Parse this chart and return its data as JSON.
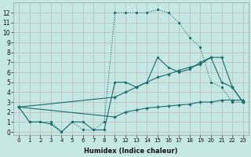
{
  "xlabel": "Humidex (Indice chaleur)",
  "xlim": [
    -0.5,
    23.5
  ],
  "ylim": [
    -0.3,
    13
  ],
  "yticks": [
    0,
    1,
    2,
    3,
    4,
    5,
    6,
    7,
    8,
    9,
    10,
    11,
    12
  ],
  "xtick_locs": [
    0,
    1,
    2,
    3,
    4,
    5,
    6,
    7,
    8,
    9,
    12,
    13,
    14,
    15,
    16,
    17,
    18,
    19,
    20,
    21,
    22,
    23
  ],
  "bg_color": "#c5e8e5",
  "grid_color": "#aacfcc",
  "grid_major_color": "#c0b8b8",
  "line_color": "#1a6b6b",
  "line1_x": [
    0,
    1,
    2,
    3,
    4,
    5,
    6,
    7,
    8,
    9,
    12,
    13,
    14,
    15,
    16,
    17,
    18,
    19,
    20,
    21,
    22,
    23
  ],
  "line1_y": [
    2.5,
    1,
    1,
    1,
    0,
    1,
    0.2,
    0.2,
    1,
    12,
    12,
    12,
    12,
    12.3,
    12,
    11,
    9.5,
    8.5,
    5,
    4.5,
    3,
    3
  ],
  "line2_x": [
    0,
    1,
    2,
    3,
    4,
    5,
    6,
    7,
    8,
    9,
    12,
    13,
    14,
    15,
    16,
    17,
    18,
    19,
    20,
    21,
    22,
    23
  ],
  "line2_y": [
    2.5,
    1,
    1,
    0.8,
    0,
    1,
    1,
    0.2,
    0.2,
    5,
    5,
    4.5,
    5,
    7.5,
    6.5,
    6,
    6.3,
    7,
    7.5,
    5,
    4.5,
    3
  ],
  "line3_x": [
    0,
    9,
    12,
    13,
    14,
    15,
    16,
    17,
    18,
    19,
    20,
    21,
    22,
    23
  ],
  "line3_y": [
    2.5,
    3.5,
    4,
    4.5,
    5,
    5.5,
    5.8,
    6.2,
    6.5,
    6.8,
    7.5,
    7.5,
    4.5,
    3
  ],
  "line4_x": [
    0,
    9,
    12,
    13,
    14,
    15,
    16,
    17,
    18,
    19,
    20,
    21,
    22,
    23
  ],
  "line4_y": [
    2.5,
    1.5,
    2,
    2.2,
    2.4,
    2.5,
    2.6,
    2.7,
    2.8,
    3.0,
    3.0,
    3.2,
    3.2,
    3.2
  ]
}
